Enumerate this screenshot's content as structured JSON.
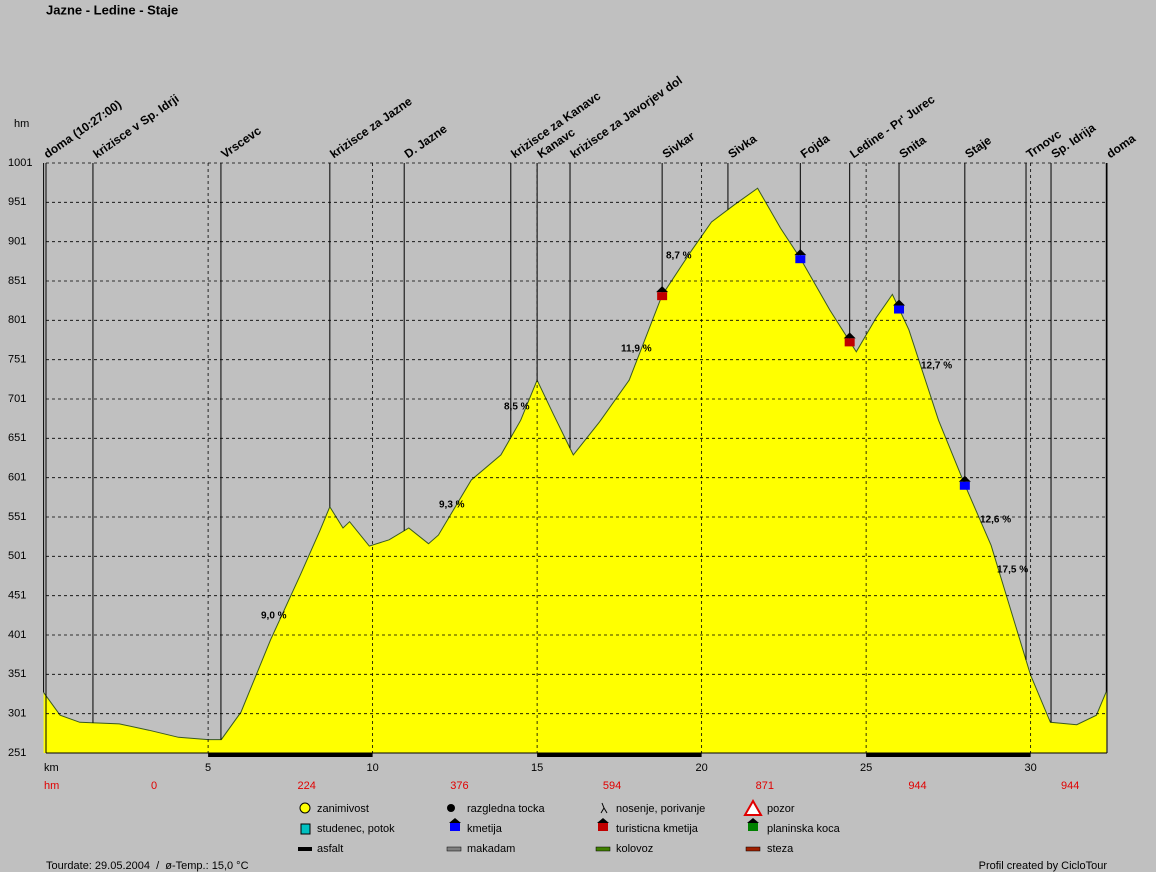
{
  "chart_data": {
    "type": "area",
    "title": "Jazne - Ledine - Staje",
    "y_label": "hm",
    "x_label": "km",
    "x": [
      0,
      0.5,
      1.1,
      2.3,
      3.2,
      4.1,
      5.0,
      5.4,
      6.0,
      6.9,
      7.8,
      8.4,
      8.7,
      9.1,
      9.3,
      9.9,
      10.5,
      11.1,
      11.7,
      12.0,
      13.0,
      13.9,
      14.5,
      15.0,
      15.5,
      16.1,
      16.9,
      17.8,
      18.8,
      19.7,
      20.3,
      21.0,
      21.7,
      22.4,
      23.0,
      23.9,
      24.7,
      25.3,
      25.8,
      26.3,
      27.2,
      28.0,
      28.8,
      30.0,
      30.6,
      31.4,
      32.0,
      32.3
    ],
    "series": [
      {
        "color": "#ffff00",
        "values": [
          328,
          299,
          290,
          288,
          280,
          271,
          268,
          268,
          303,
          395,
          477,
          534,
          564,
          537,
          545,
          514,
          522,
          537,
          517,
          528,
          598,
          630,
          674,
          725,
          681,
          630,
          672,
          725,
          833,
          890,
          926,
          948,
          969,
          918,
          880,
          814,
          761,
          804,
          834,
          789,
          674,
          592,
          515,
          350,
          290,
          287,
          299,
          329
        ]
      }
    ],
    "xlim": [
      0,
      32.3
    ],
    "ylim": [
      251,
      1001
    ],
    "xticks": [
      5,
      10,
      15,
      20,
      25,
      30
    ],
    "yticks": [
      251,
      301,
      351,
      401,
      451,
      501,
      551,
      601,
      651,
      701,
      751,
      801,
      851,
      901,
      951,
      1001
    ],
    "grid": true,
    "waypoints": [
      {
        "label": "doma (10:27:00)",
        "km": 0
      },
      {
        "label": "krizisce v Sp. Idrji",
        "km": 1.5
      },
      {
        "label": "Vrscevc",
        "km": 5.39
      },
      {
        "label": "krizisce za Jazne",
        "km": 8.7
      },
      {
        "label": "D. Jazne",
        "km": 10.96
      },
      {
        "label": "krizisce za Kanavc",
        "km": 14.2
      },
      {
        "label": "Kanavc",
        "km": 15.0
      },
      {
        "label": "krizisce za Javorjev dol",
        "km": 16.0
      },
      {
        "label": "Sivkar",
        "km": 18.8,
        "icon_color": "#c00000"
      },
      {
        "label": "Sivka",
        "km": 20.8
      },
      {
        "label": "Fojda",
        "km": 23.0,
        "icon_color": "#0000ff"
      },
      {
        "label": "Ledine - Pr' Jurec",
        "km": 24.5,
        "icon_color": "#c00000"
      },
      {
        "label": "Snita",
        "km": 26.0,
        "icon_color": "#0000ff"
      },
      {
        "label": "Staje",
        "km": 28.0,
        "icon_color": "#0000ff"
      },
      {
        "label": "Trnovc",
        "km": 29.86
      },
      {
        "label": "Sp. Idrija",
        "km": 30.62
      },
      {
        "label": "doma",
        "km": 32.3
      }
    ],
    "grades": [
      "8,7 %",
      "11,9 %",
      "8,5 %",
      "9,3 %",
      "9,0 %",
      "12,7 %",
      "12,6 %",
      "17,5 %"
    ],
    "climb": {
      "label": "hm",
      "values": [
        0,
        224,
        376,
        594,
        871,
        944,
        944
      ]
    }
  },
  "legend": [
    "zanimivost",
    "razgledna tocka",
    "nosenje, porivanje",
    "pozor",
    "studenec, potok",
    "kmetija",
    "turisticna kmetija",
    "planinska koca",
    "asfalt",
    "makadam",
    "kolovoz",
    "steza"
  ],
  "footer": {
    "left": "Tourdate: 29.05.2004  /  ø-Temp.: 15,0 °C",
    "right": "Profil created by CicloTour"
  }
}
